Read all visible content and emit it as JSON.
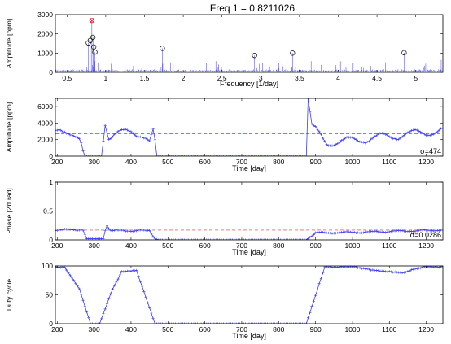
{
  "figure": {
    "title": "Freq 1 = 0.8211026"
  },
  "chart_data": [
    {
      "type": "line",
      "panel": "spectrum",
      "xlabel": "Frequency  [1/day]",
      "ylabel": "Amplitude  [ppm]",
      "xlim": [
        0.35,
        5.35
      ],
      "ylim": [
        0,
        3000
      ],
      "xticks": [
        0.5,
        1,
        1.5,
        2,
        2.5,
        3,
        3.5,
        4,
        4.5,
        5
      ],
      "yticks": [
        0,
        1000,
        2000,
        3000
      ],
      "grid": false,
      "peaks": [
        {
          "x": 0.8211,
          "y": 2700,
          "selected": true
        },
        {
          "x": 0.775,
          "y": 1530
        },
        {
          "x": 0.8,
          "y": 1660
        },
        {
          "x": 0.835,
          "y": 1820
        },
        {
          "x": 0.845,
          "y": 1320
        },
        {
          "x": 0.86,
          "y": 1050
        },
        {
          "x": 1.73,
          "y": 1250
        },
        {
          "x": 2.92,
          "y": 880
        },
        {
          "x": 3.41,
          "y": 1000
        },
        {
          "x": 4.85,
          "y": 1020
        }
      ]
    },
    {
      "type": "line",
      "panel": "amplitude",
      "xlabel": "Time  [day]",
      "ylabel": "Amplitude  [ppm]",
      "xlim": [
        195,
        1245
      ],
      "ylim": [
        0,
        7000
      ],
      "xticks": [
        200,
        300,
        400,
        500,
        600,
        700,
        800,
        900,
        1000,
        1100,
        1200
      ],
      "yticks": [
        0,
        2000,
        4000,
        6000
      ],
      "mean": 2700,
      "annotation": "σ=474",
      "profile": [
        [
          195,
          2700
        ],
        [
          240,
          3050
        ],
        [
          262,
          2200
        ],
        [
          272,
          0
        ],
        [
          322,
          0
        ],
        [
          328,
          4500
        ],
        [
          340,
          2300
        ],
        [
          400,
          3100
        ],
        [
          430,
          2600
        ],
        [
          450,
          1600
        ],
        [
          462,
          3100
        ],
        [
          468,
          0
        ],
        [
          875,
          0
        ],
        [
          880,
          7000
        ],
        [
          890,
          3600
        ],
        [
          930,
          1600
        ],
        [
          1245,
          3100
        ]
      ]
    },
    {
      "type": "line",
      "panel": "phase",
      "xlabel": "Time  [day]",
      "ylabel": "Phase  [2π rad]",
      "xlim": [
        195,
        1245
      ],
      "ylim": [
        0,
        1
      ],
      "xticks": [
        200,
        300,
        400,
        500,
        600,
        700,
        800,
        900,
        1000,
        1100,
        1200
      ],
      "yticks": [
        0,
        0.5,
        1
      ],
      "mean": 0.17,
      "annotation": "σ=0.0286",
      "profile": [
        [
          195,
          0.17
        ],
        [
          270,
          0.18
        ],
        [
          280,
          0.02
        ],
        [
          325,
          0.02
        ],
        [
          333,
          0.27
        ],
        [
          345,
          0.16
        ],
        [
          450,
          0.16
        ],
        [
          465,
          0.02
        ],
        [
          475,
          0.0
        ],
        [
          875,
          0.0
        ],
        [
          900,
          0.12
        ],
        [
          1000,
          0.13
        ],
        [
          1245,
          0.17
        ]
      ]
    },
    {
      "type": "line",
      "panel": "duty",
      "xlabel": "Time  [day]",
      "ylabel": "Duty cycle",
      "xlim": [
        195,
        1245
      ],
      "ylim": [
        0,
        100
      ],
      "xticks": [
        200,
        300,
        400,
        500,
        600,
        700,
        800,
        900,
        1000,
        1100,
        1200
      ],
      "yticks": [
        0,
        50,
        100
      ],
      "profile": [
        [
          195,
          98
        ],
        [
          220,
          98
        ],
        [
          260,
          60
        ],
        [
          290,
          0
        ],
        [
          315,
          0
        ],
        [
          350,
          60
        ],
        [
          375,
          90
        ],
        [
          415,
          92
        ],
        [
          465,
          0
        ],
        [
          875,
          0
        ],
        [
          925,
          98
        ],
        [
          1000,
          99
        ],
        [
          1060,
          92
        ],
        [
          1140,
          88
        ],
        [
          1160,
          93
        ],
        [
          1200,
          99
        ],
        [
          1245,
          98
        ]
      ]
    }
  ]
}
